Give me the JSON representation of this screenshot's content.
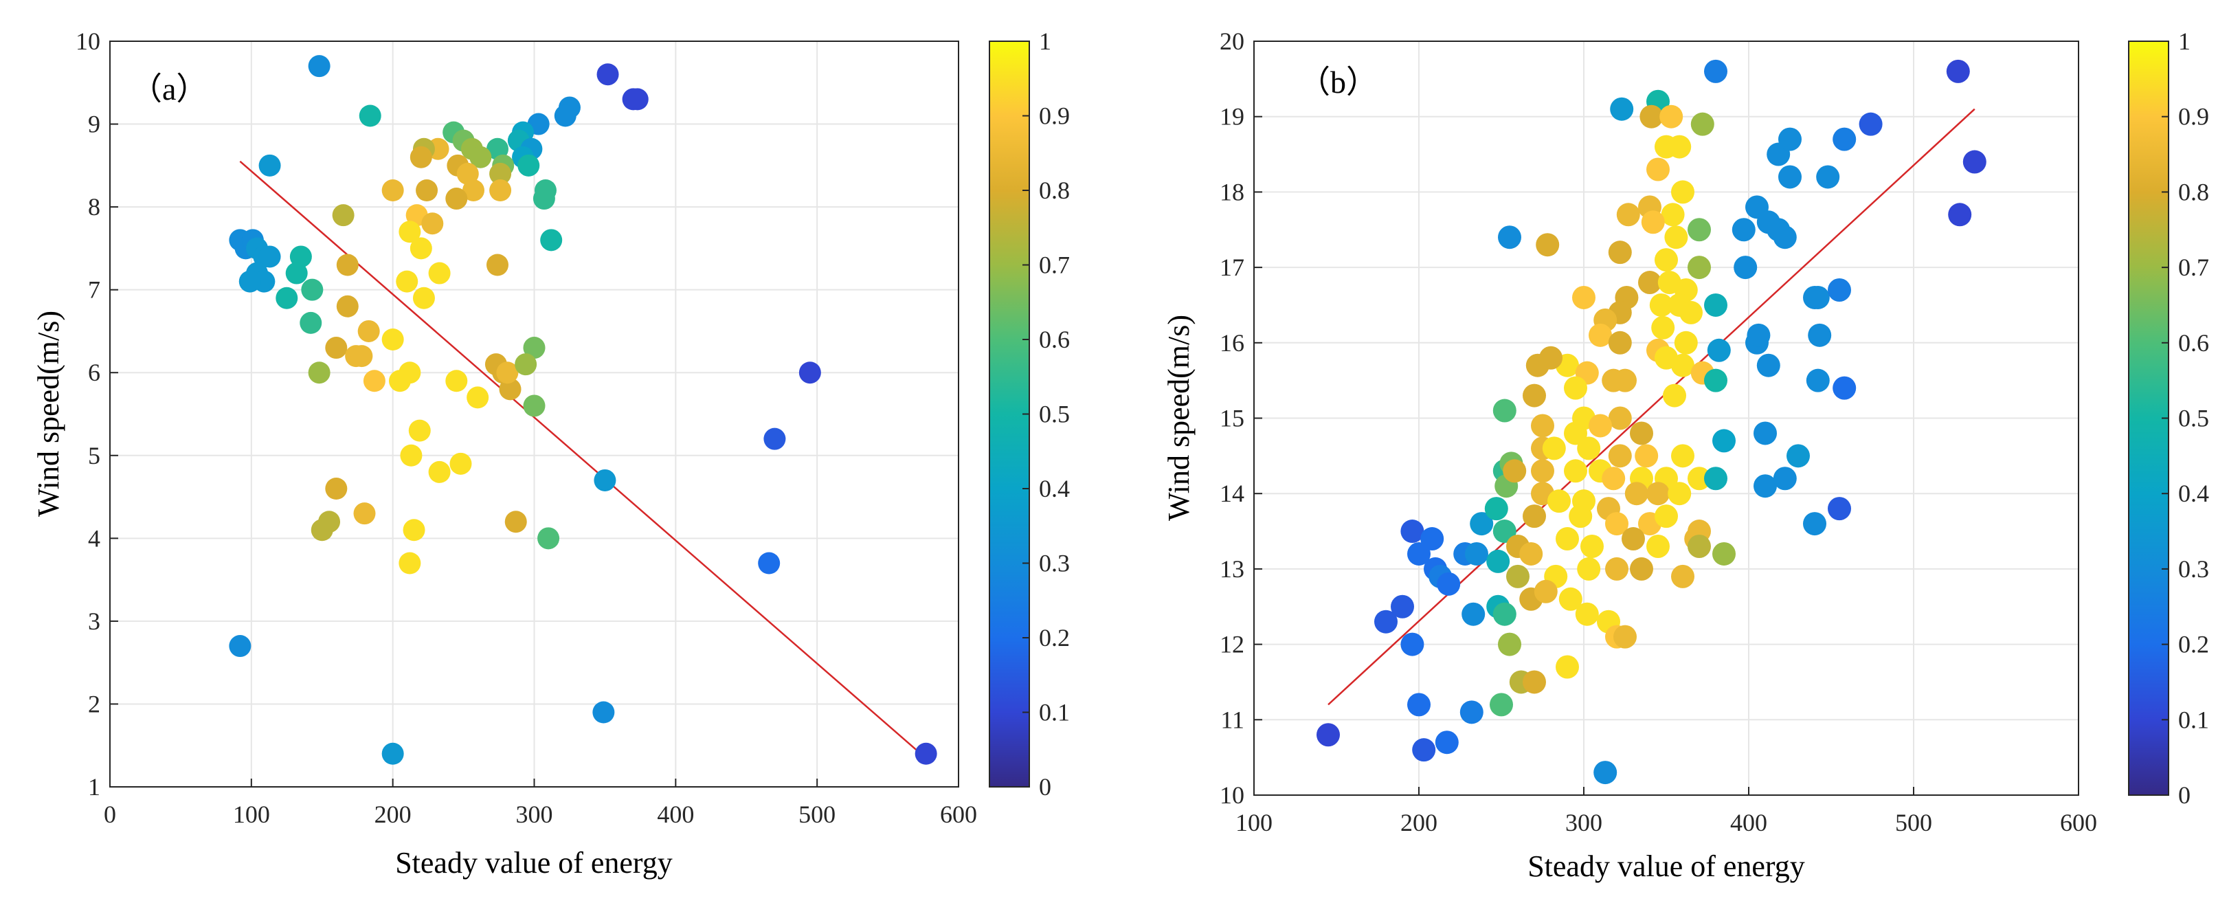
{
  "chart_data": [
    {
      "type": "scatter",
      "panel_label": "（a）",
      "xlabel": "Steady value of energy",
      "ylabel": "Wind speed(m/s)",
      "xlim": [
        0,
        600
      ],
      "ylim": [
        1,
        10
      ],
      "xticks": [
        "0",
        "100",
        "200",
        "300",
        "400",
        "500",
        "600"
      ],
      "yticks": [
        "1",
        "2",
        "3",
        "4",
        "5",
        "6",
        "7",
        "8",
        "9",
        "10"
      ],
      "grid": true,
      "colorbar": {
        "range": [
          0,
          1
        ],
        "ticks": [
          "0",
          "0.1",
          "0.2",
          "0.3",
          "0.4",
          "0.5",
          "0.6",
          "0.7",
          "0.8",
          "0.9",
          "1"
        ],
        "colormap": "parula"
      },
      "fit_line": {
        "x": [
          92,
          580
        ],
        "y": [
          8.55,
          1.3
        ],
        "color": "#d62728"
      },
      "points": [
        [
          148,
          9.7,
          0.3
        ],
        [
          352,
          9.6,
          0.1
        ],
        [
          370,
          9.3,
          0.1
        ],
        [
          373,
          9.3,
          0.1
        ],
        [
          184,
          9.1,
          0.5
        ],
        [
          113,
          8.5,
          0.35
        ],
        [
          325,
          9.2,
          0.3
        ],
        [
          322,
          9.1,
          0.3
        ],
        [
          303,
          9.0,
          0.3
        ],
        [
          292,
          8.9,
          0.4
        ],
        [
          289,
          8.8,
          0.45
        ],
        [
          298,
          8.7,
          0.35
        ],
        [
          292,
          8.6,
          0.4
        ],
        [
          296,
          8.5,
          0.5
        ],
        [
          274,
          8.7,
          0.55
        ],
        [
          278,
          8.5,
          0.65
        ],
        [
          276,
          8.4,
          0.75
        ],
        [
          276,
          8.2,
          0.85
        ],
        [
          243,
          8.9,
          0.6
        ],
        [
          250,
          8.8,
          0.65
        ],
        [
          256,
          8.7,
          0.7
        ],
        [
          262,
          8.6,
          0.7
        ],
        [
          232,
          8.7,
          0.85
        ],
        [
          222,
          8.7,
          0.75
        ],
        [
          220,
          8.6,
          0.8
        ],
        [
          246,
          8.5,
          0.8
        ],
        [
          253,
          8.4,
          0.85
        ],
        [
          257,
          8.2,
          0.85
        ],
        [
          224,
          8.2,
          0.8
        ],
        [
          245,
          8.1,
          0.8
        ],
        [
          200,
          8.2,
          0.85
        ],
        [
          165,
          7.9,
          0.75
        ],
        [
          217,
          7.9,
          0.9
        ],
        [
          228,
          7.8,
          0.85
        ],
        [
          212,
          7.7,
          0.95
        ],
        [
          220,
          7.5,
          0.95
        ],
        [
          308,
          8.2,
          0.55
        ],
        [
          307,
          8.1,
          0.55
        ],
        [
          312,
          7.6,
          0.5
        ],
        [
          92,
          7.6,
          0.3
        ],
        [
          96,
          7.5,
          0.3
        ],
        [
          101,
          7.6,
          0.3
        ],
        [
          104,
          7.5,
          0.35
        ],
        [
          109,
          7.4,
          0.35
        ],
        [
          113,
          7.4,
          0.35
        ],
        [
          104,
          7.2,
          0.35
        ],
        [
          109,
          7.1,
          0.35
        ],
        [
          99,
          7.1,
          0.35
        ],
        [
          135,
          7.4,
          0.5
        ],
        [
          132,
          7.2,
          0.5
        ],
        [
          125,
          6.9,
          0.5
        ],
        [
          143,
          7.0,
          0.55
        ],
        [
          168,
          7.3,
          0.8
        ],
        [
          210,
          7.1,
          0.95
        ],
        [
          222,
          6.9,
          0.95
        ],
        [
          233,
          7.2,
          0.95
        ],
        [
          274,
          7.3,
          0.8
        ],
        [
          142,
          6.6,
          0.55
        ],
        [
          168,
          6.8,
          0.8
        ],
        [
          160,
          6.3,
          0.8
        ],
        [
          174,
          6.2,
          0.85
        ],
        [
          183,
          6.5,
          0.85
        ],
        [
          178,
          6.2,
          0.85
        ],
        [
          200,
          6.4,
          0.95
        ],
        [
          148,
          6.0,
          0.7
        ],
        [
          187,
          5.9,
          0.9
        ],
        [
          205,
          5.9,
          0.95
        ],
        [
          212,
          6.0,
          0.95
        ],
        [
          245,
          5.9,
          0.95
        ],
        [
          260,
          5.7,
          0.95
        ],
        [
          273,
          6.1,
          0.8
        ],
        [
          278,
          6.0,
          0.8
        ],
        [
          283,
          5.8,
          0.8
        ],
        [
          281,
          6.0,
          0.85
        ],
        [
          300,
          6.3,
          0.65
        ],
        [
          294,
          6.1,
          0.7
        ],
        [
          300,
          5.6,
          0.65
        ],
        [
          219,
          5.3,
          0.95
        ],
        [
          213,
          5.0,
          0.95
        ],
        [
          233,
          4.8,
          0.95
        ],
        [
          248,
          4.9,
          0.95
        ],
        [
          160,
          4.6,
          0.8
        ],
        [
          155,
          4.2,
          0.75
        ],
        [
          150,
          4.1,
          0.75
        ],
        [
          180,
          4.3,
          0.85
        ],
        [
          215,
          4.1,
          0.95
        ],
        [
          212,
          3.7,
          0.95
        ],
        [
          287,
          4.2,
          0.8
        ],
        [
          310,
          4.0,
          0.6
        ],
        [
          350,
          4.7,
          0.35
        ],
        [
          495,
          6.0,
          0.1
        ],
        [
          470,
          5.2,
          0.15
        ],
        [
          466,
          3.7,
          0.2
        ],
        [
          92,
          2.7,
          0.3
        ],
        [
          349,
          1.9,
          0.3
        ],
        [
          200,
          1.4,
          0.35
        ],
        [
          577,
          1.4,
          0.1
        ]
      ]
    },
    {
      "type": "scatter",
      "panel_label": "（b）",
      "xlabel": "Steady value of energy",
      "ylabel": "Wind speed(m/s)",
      "xlim": [
        100,
        600
      ],
      "ylim": [
        10,
        20
      ],
      "xticks": [
        "100",
        "200",
        "300",
        "400",
        "500",
        "600"
      ],
      "yticks": [
        "10",
        "11",
        "12",
        "13",
        "14",
        "15",
        "16",
        "17",
        "18",
        "19",
        "20"
      ],
      "grid": true,
      "colorbar": {
        "range": [
          0,
          1
        ],
        "ticks": [
          "0",
          "0.1",
          "0.2",
          "0.3",
          "0.4",
          "0.5",
          "0.6",
          "0.7",
          "0.8",
          "0.9",
          "1"
        ],
        "colormap": "parula"
      },
      "fit_line": {
        "x": [
          145,
          537
        ],
        "y": [
          11.2,
          19.1
        ],
        "color": "#d62728"
      },
      "points": [
        [
          145,
          10.8,
          0.1
        ],
        [
          203,
          10.6,
          0.15
        ],
        [
          217,
          10.7,
          0.2
        ],
        [
          200,
          11.2,
          0.2
        ],
        [
          232,
          11.1,
          0.25
        ],
        [
          313,
          10.3,
          0.3
        ],
        [
          250,
          11.2,
          0.6
        ],
        [
          180,
          12.3,
          0.15
        ],
        [
          190,
          12.5,
          0.15
        ],
        [
          196,
          12.0,
          0.2
        ],
        [
          196,
          13.5,
          0.15
        ],
        [
          200,
          13.2,
          0.2
        ],
        [
          208,
          13.4,
          0.2
        ],
        [
          210,
          13.0,
          0.2
        ],
        [
          213,
          12.9,
          0.25
        ],
        [
          218,
          12.8,
          0.2
        ],
        [
          228,
          13.2,
          0.25
        ],
        [
          235,
          13.2,
          0.3
        ],
        [
          238,
          13.6,
          0.35
        ],
        [
          233,
          12.4,
          0.3
        ],
        [
          248,
          13.1,
          0.45
        ],
        [
          247,
          13.8,
          0.5
        ],
        [
          252,
          13.5,
          0.55
        ],
        [
          248,
          12.5,
          0.45
        ],
        [
          252,
          12.4,
          0.55
        ],
        [
          255,
          12.0,
          0.7
        ],
        [
          252,
          14.3,
          0.55
        ],
        [
          256,
          14.4,
          0.65
        ],
        [
          253,
          14.1,
          0.65
        ],
        [
          252,
          15.1,
          0.6
        ],
        [
          255,
          17.4,
          0.3
        ],
        [
          323,
          19.1,
          0.35
        ],
        [
          345,
          19.2,
          0.5
        ],
        [
          341,
          19.0,
          0.8
        ],
        [
          353,
          19.0,
          0.9
        ],
        [
          372,
          18.9,
          0.7
        ],
        [
          380,
          19.6,
          0.25
        ],
        [
          350,
          18.6,
          0.95
        ],
        [
          358,
          18.6,
          0.95
        ],
        [
          345,
          18.3,
          0.9
        ],
        [
          340,
          17.8,
          0.85
        ],
        [
          360,
          18.0,
          0.95
        ],
        [
          354,
          17.7,
          0.95
        ],
        [
          327,
          17.7,
          0.85
        ],
        [
          342,
          17.6,
          0.9
        ],
        [
          370,
          17.5,
          0.65
        ],
        [
          356,
          17.4,
          0.95
        ],
        [
          278,
          17.3,
          0.8
        ],
        [
          322,
          17.2,
          0.8
        ],
        [
          350,
          17.1,
          0.95
        ],
        [
          370,
          17.0,
          0.7
        ],
        [
          340,
          16.8,
          0.8
        ],
        [
          352,
          16.8,
          0.95
        ],
        [
          362,
          16.7,
          0.95
        ],
        [
          300,
          16.6,
          0.9
        ],
        [
          326,
          16.6,
          0.8
        ],
        [
          322,
          16.4,
          0.8
        ],
        [
          347,
          16.5,
          0.95
        ],
        [
          358,
          16.5,
          0.95
        ],
        [
          365,
          16.4,
          0.95
        ],
        [
          380,
          16.5,
          0.45
        ],
        [
          313,
          16.3,
          0.85
        ],
        [
          310,
          16.1,
          0.9
        ],
        [
          348,
          16.2,
          0.95
        ],
        [
          362,
          16.0,
          0.95
        ],
        [
          322,
          16.0,
          0.8
        ],
        [
          345,
          15.9,
          0.9
        ],
        [
          382,
          15.9,
          0.35
        ],
        [
          290,
          15.7,
          0.95
        ],
        [
          302,
          15.6,
          0.9
        ],
        [
          272,
          15.7,
          0.8
        ],
        [
          280,
          15.8,
          0.8
        ],
        [
          270,
          15.3,
          0.8
        ],
        [
          350,
          15.8,
          0.95
        ],
        [
          360,
          15.7,
          0.95
        ],
        [
          372,
          15.6,
          0.9
        ],
        [
          380,
          15.5,
          0.5
        ],
        [
          295,
          15.4,
          0.95
        ],
        [
          318,
          15.5,
          0.85
        ],
        [
          325,
          15.5,
          0.85
        ],
        [
          355,
          15.3,
          0.95
        ],
        [
          300,
          15.0,
          0.95
        ],
        [
          322,
          15.0,
          0.85
        ],
        [
          275,
          14.9,
          0.85
        ],
        [
          295,
          14.8,
          0.95
        ],
        [
          310,
          14.9,
          0.9
        ],
        [
          335,
          14.8,
          0.8
        ],
        [
          275,
          14.6,
          0.85
        ],
        [
          282,
          14.6,
          0.95
        ],
        [
          303,
          14.6,
          0.95
        ],
        [
          322,
          14.5,
          0.85
        ],
        [
          338,
          14.5,
          0.9
        ],
        [
          360,
          14.5,
          0.95
        ],
        [
          385,
          14.7,
          0.4
        ],
        [
          258,
          14.3,
          0.8
        ],
        [
          275,
          14.3,
          0.85
        ],
        [
          295,
          14.3,
          0.95
        ],
        [
          310,
          14.3,
          0.95
        ],
        [
          318,
          14.2,
          0.9
        ],
        [
          335,
          14.2,
          0.95
        ],
        [
          350,
          14.2,
          0.95
        ],
        [
          370,
          14.2,
          0.95
        ],
        [
          380,
          14.2,
          0.45
        ],
        [
          275,
          14.0,
          0.85
        ],
        [
          285,
          13.9,
          0.95
        ],
        [
          300,
          13.9,
          0.95
        ],
        [
          315,
          13.8,
          0.85
        ],
        [
          332,
          14.0,
          0.85
        ],
        [
          345,
          14.0,
          0.85
        ],
        [
          358,
          14.0,
          0.95
        ],
        [
          270,
          13.7,
          0.8
        ],
        [
          298,
          13.7,
          0.95
        ],
        [
          320,
          13.6,
          0.9
        ],
        [
          340,
          13.6,
          0.9
        ],
        [
          350,
          13.7,
          0.95
        ],
        [
          370,
          13.5,
          0.85
        ],
        [
          260,
          13.3,
          0.8
        ],
        [
          268,
          13.2,
          0.85
        ],
        [
          290,
          13.4,
          0.95
        ],
        [
          305,
          13.3,
          0.95
        ],
        [
          330,
          13.4,
          0.8
        ],
        [
          345,
          13.3,
          0.95
        ],
        [
          368,
          13.4,
          0.85
        ],
        [
          260,
          12.9,
          0.75
        ],
        [
          283,
          12.9,
          0.95
        ],
        [
          303,
          13.0,
          0.95
        ],
        [
          320,
          13.0,
          0.85
        ],
        [
          335,
          13.0,
          0.8
        ],
        [
          360,
          12.9,
          0.85
        ],
        [
          268,
          12.6,
          0.8
        ],
        [
          277,
          12.7,
          0.85
        ],
        [
          292,
          12.6,
          0.95
        ],
        [
          302,
          12.4,
          0.95
        ],
        [
          315,
          12.3,
          0.95
        ],
        [
          320,
          12.1,
          0.9
        ],
        [
          325,
          12.1,
          0.85
        ],
        [
          262,
          11.5,
          0.75
        ],
        [
          270,
          11.5,
          0.8
        ],
        [
          290,
          11.7,
          0.95
        ],
        [
          370,
          13.3,
          0.75
        ],
        [
          385,
          13.2,
          0.7
        ],
        [
          410,
          14.1,
          0.3
        ],
        [
          422,
          14.2,
          0.3
        ],
        [
          430,
          14.5,
          0.35
        ],
        [
          440,
          13.6,
          0.3
        ],
        [
          455,
          13.8,
          0.15
        ],
        [
          410,
          14.8,
          0.3
        ],
        [
          442,
          15.5,
          0.3
        ],
        [
          458,
          15.4,
          0.2
        ],
        [
          412,
          15.7,
          0.3
        ],
        [
          405,
          16.0,
          0.3
        ],
        [
          406,
          16.1,
          0.3
        ],
        [
          443,
          16.1,
          0.3
        ],
        [
          440,
          16.6,
          0.3
        ],
        [
          442,
          16.6,
          0.3
        ],
        [
          455,
          16.7,
          0.25
        ],
        [
          398,
          17.0,
          0.3
        ],
        [
          397,
          17.5,
          0.3
        ],
        [
          405,
          17.8,
          0.3
        ],
        [
          412,
          17.6,
          0.3
        ],
        [
          418,
          17.5,
          0.3
        ],
        [
          422,
          17.4,
          0.3
        ],
        [
          425,
          18.2,
          0.3
        ],
        [
          448,
          18.2,
          0.3
        ],
        [
          418,
          18.5,
          0.3
        ],
        [
          425,
          18.7,
          0.3
        ],
        [
          458,
          18.7,
          0.25
        ],
        [
          474,
          18.9,
          0.15
        ],
        [
          527,
          19.6,
          0.1
        ],
        [
          528,
          17.7,
          0.1
        ],
        [
          537,
          18.4,
          0.1
        ]
      ]
    }
  ]
}
